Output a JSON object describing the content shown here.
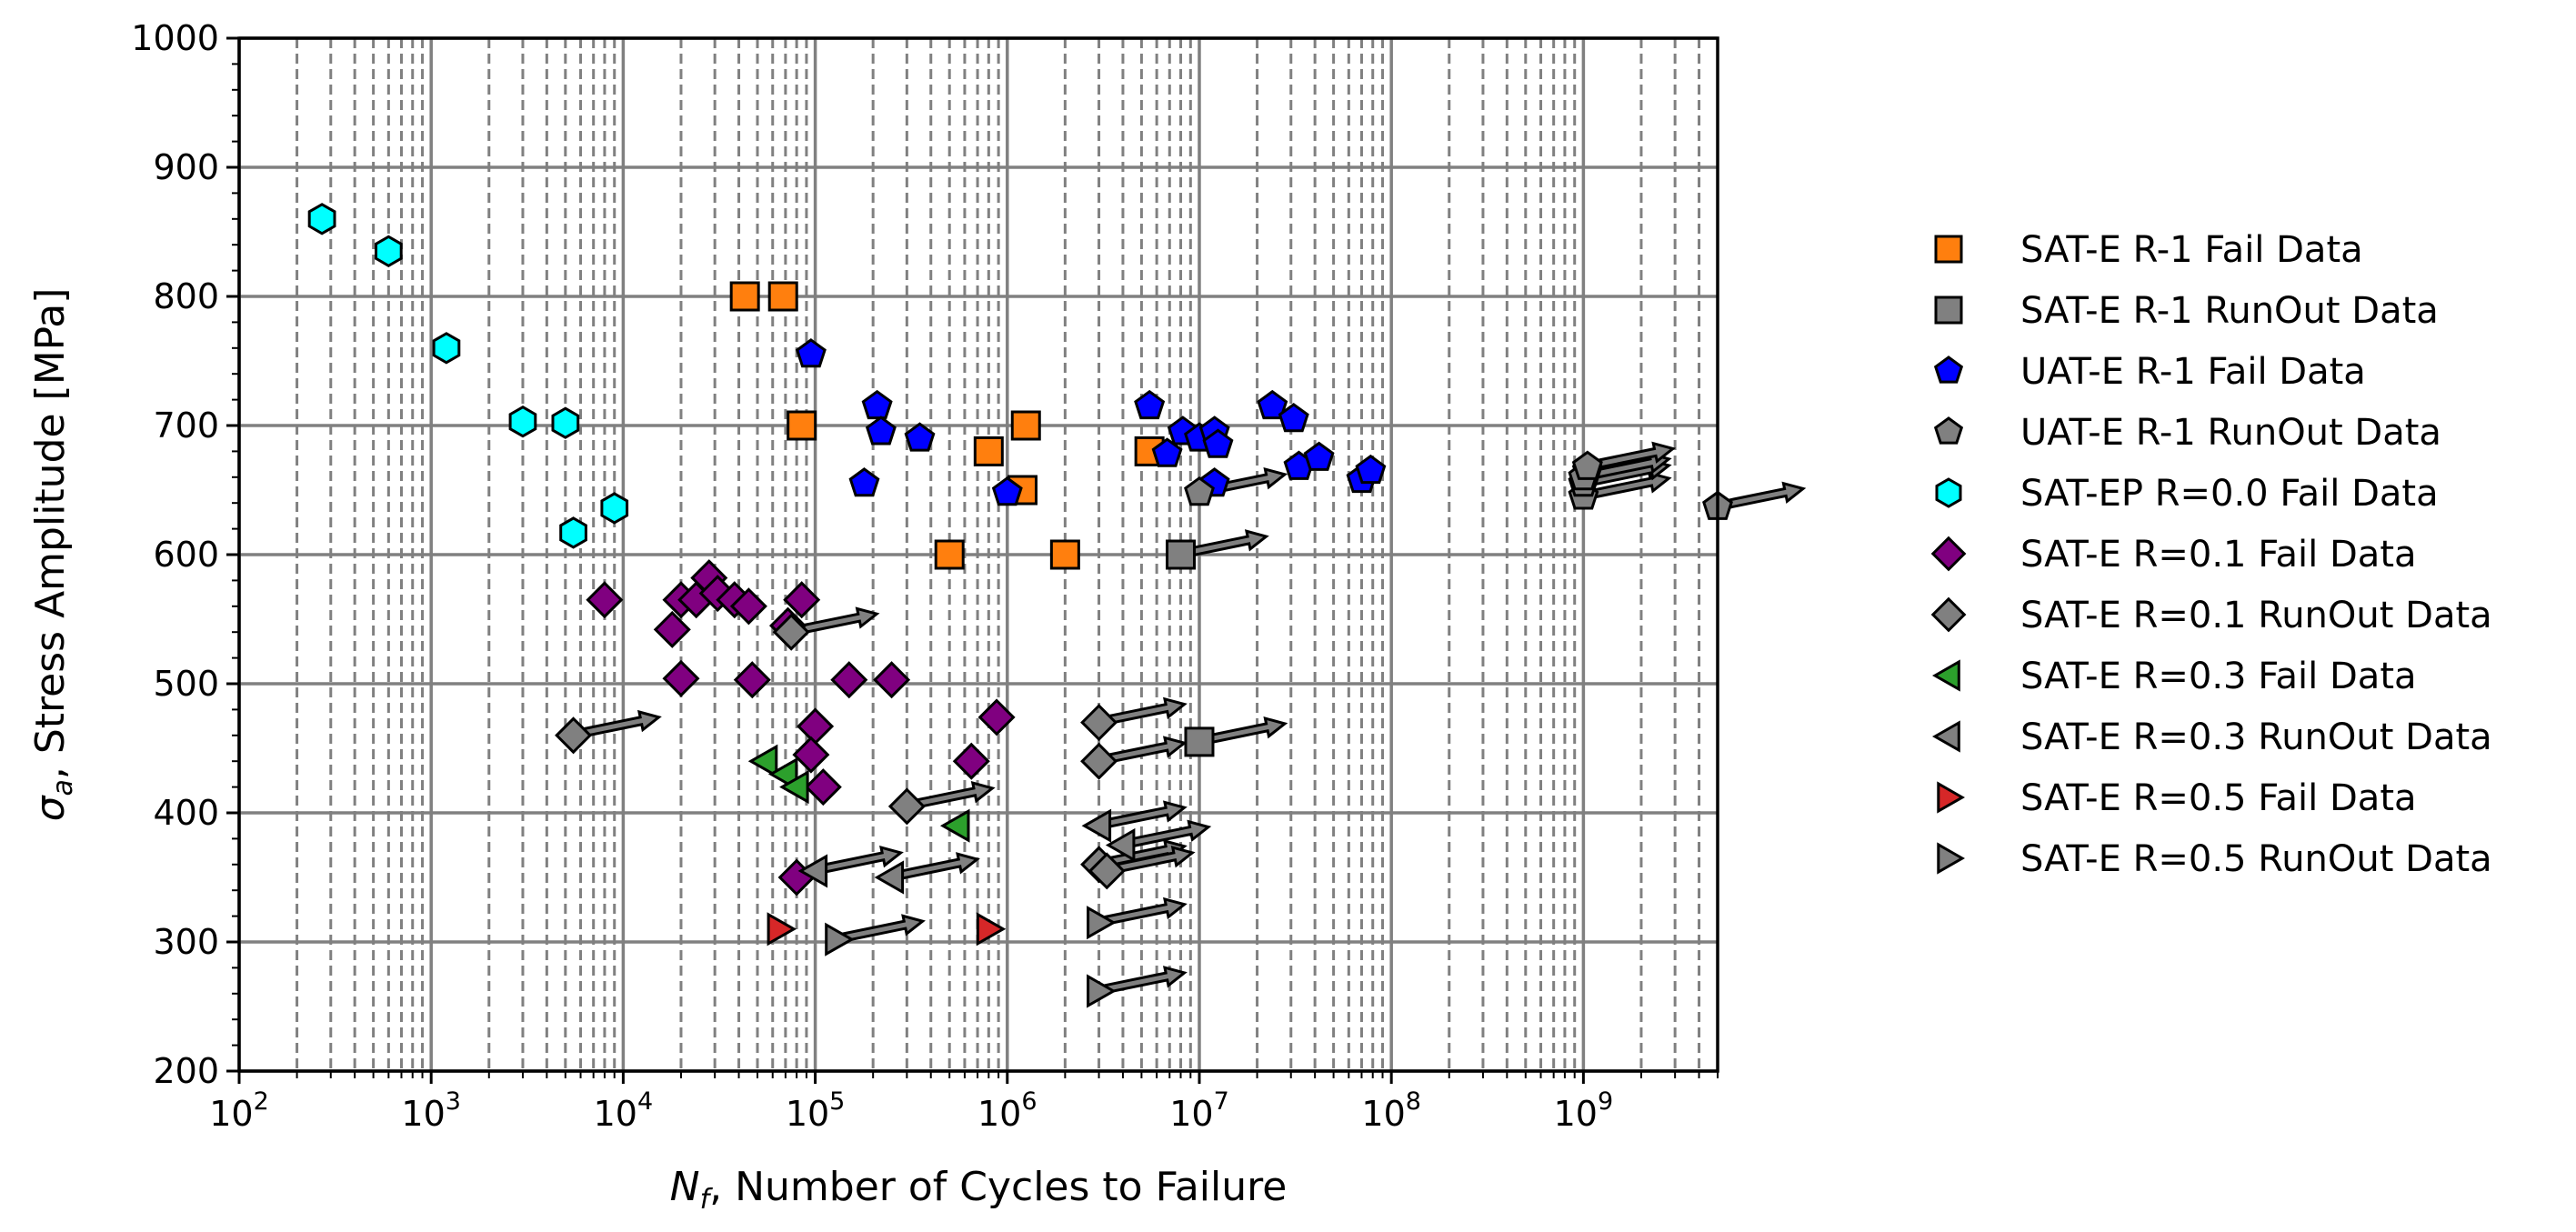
{
  "chart_data": {
    "type": "scatter",
    "title": "",
    "xlabel_sym": "N",
    "xlabel_sub": "f",
    "xlabel_rest": ", Number of Cycles to Failure",
    "ylabel_sym": "σ",
    "ylabel_sub": "a",
    "ylabel_rest": ", Stress Amplitude [MPa]",
    "x_scale": "log",
    "xlim": [
      100,
      5000000000
    ],
    "ylim": [
      200,
      1000
    ],
    "x_ticks": [
      {
        "value": 100,
        "base": "10",
        "exp": "2"
      },
      {
        "value": 1000,
        "base": "10",
        "exp": "3"
      },
      {
        "value": 10000,
        "base": "10",
        "exp": "4"
      },
      {
        "value": 100000,
        "base": "10",
        "exp": "5"
      },
      {
        "value": 1000000,
        "base": "10",
        "exp": "6"
      },
      {
        "value": 10000000,
        "base": "10",
        "exp": "7"
      },
      {
        "value": 100000000,
        "base": "10",
        "exp": "8"
      },
      {
        "value": 1000000000,
        "base": "10",
        "exp": "9"
      }
    ],
    "y_ticks": [
      "200",
      "300",
      "400",
      "500",
      "600",
      "700",
      "800",
      "900",
      "1000"
    ],
    "grid": true,
    "legend_position": "right, outside plot",
    "series": [
      {
        "name": "SAT-E R-1 Fail Data",
        "marker": "square",
        "color": "#ff7f0e",
        "runout": false,
        "points": [
          [
            43000,
            800
          ],
          [
            68000,
            800
          ],
          [
            85000,
            700
          ],
          [
            500000,
            600
          ],
          [
            800000,
            680
          ],
          [
            1200000,
            650
          ],
          [
            1250000,
            700
          ],
          [
            2000000,
            600
          ],
          [
            5500000,
            680
          ]
        ]
      },
      {
        "name": "SAT-E R-1 RunOut Data",
        "marker": "square",
        "color": "#808080",
        "runout": true,
        "points": [
          [
            8000000,
            600
          ],
          [
            10000000,
            455
          ]
        ]
      },
      {
        "name": "UAT-E R-1 Fail Data",
        "marker": "pentagon",
        "color": "#0000ff",
        "runout": false,
        "points": [
          [
            95000,
            755
          ],
          [
            210000,
            715
          ],
          [
            220000,
            695
          ],
          [
            350000,
            690
          ],
          [
            180000,
            655
          ],
          [
            1000000,
            648
          ],
          [
            5500000,
            715
          ],
          [
            6800000,
            678
          ],
          [
            8200000,
            695
          ],
          [
            10000000,
            690
          ],
          [
            12000000,
            655
          ],
          [
            12000000,
            695
          ],
          [
            12500000,
            685
          ],
          [
            24000000,
            715
          ],
          [
            31000000,
            705
          ],
          [
            33000000,
            668
          ],
          [
            42000000,
            675
          ],
          [
            70000000,
            658
          ],
          [
            78000000,
            665
          ],
          [
            1050000000,
            665
          ]
        ]
      },
      {
        "name": "UAT-E R-1 RunOut Data",
        "marker": "pentagon",
        "color": "#808080",
        "runout": true,
        "points": [
          [
            10000000,
            648
          ],
          [
            1000000000,
            645
          ],
          [
            1000000000,
            655
          ],
          [
            1000000000,
            660
          ],
          [
            1050000000,
            668
          ],
          [
            5000000000,
            637
          ]
        ]
      },
      {
        "name": "SAT-EP R=0.0 Fail Data",
        "marker": "hexagon",
        "color": "#00ffff",
        "runout": false,
        "points": [
          [
            270,
            860
          ],
          [
            600,
            835
          ],
          [
            1200,
            760
          ],
          [
            3000,
            703
          ],
          [
            5000,
            702
          ],
          [
            5500,
            617
          ],
          [
            9000,
            636
          ]
        ]
      },
      {
        "name": "SAT-E R=0.1 Fail Data",
        "marker": "diamond",
        "color": "#800080",
        "runout": false,
        "points": [
          [
            8000,
            565
          ],
          [
            18000,
            542
          ],
          [
            20000,
            565
          ],
          [
            24000,
            565
          ],
          [
            28000,
            582
          ],
          [
            31000,
            570
          ],
          [
            38000,
            565
          ],
          [
            45000,
            560
          ],
          [
            72000,
            545
          ],
          [
            85000,
            565
          ],
          [
            20000,
            504
          ],
          [
            47000,
            503
          ],
          [
            150000,
            503
          ],
          [
            250000,
            503
          ],
          [
            100000,
            467
          ],
          [
            95000,
            445
          ],
          [
            110000,
            420
          ],
          [
            80000,
            350
          ],
          [
            650000,
            440
          ],
          [
            880000,
            474
          ]
        ]
      },
      {
        "name": "SAT-E R=0.1 RunOut Data",
        "marker": "diamond",
        "color": "#808080",
        "runout": true,
        "points": [
          [
            75000,
            540
          ],
          [
            5500,
            460
          ],
          [
            300000,
            405
          ],
          [
            3000000,
            470
          ],
          [
            3000000,
            440
          ],
          [
            3000000,
            360
          ],
          [
            3300000,
            355
          ]
        ]
      },
      {
        "name": "SAT-E R=0.3 Fail Data",
        "marker": "triangle-left",
        "color": "#2ca02c",
        "runout": false,
        "points": [
          [
            55000,
            440
          ],
          [
            70000,
            430
          ],
          [
            80000,
            420
          ],
          [
            550000,
            390
          ]
        ]
      },
      {
        "name": "SAT-E R=0.3 RunOut Data",
        "marker": "triangle-left",
        "color": "#808080",
        "runout": true,
        "points": [
          [
            100000,
            355
          ],
          [
            250000,
            350
          ],
          [
            3000000,
            390
          ],
          [
            4000000,
            375
          ]
        ]
      },
      {
        "name": "SAT-E R=0.5 Fail Data",
        "marker": "triangle-right",
        "color": "#d62728",
        "runout": false,
        "points": [
          [
            65000,
            310
          ],
          [
            800000,
            310
          ]
        ]
      },
      {
        "name": "SAT-E R=0.5 RunOut Data",
        "marker": "triangle-right",
        "color": "#808080",
        "runout": true,
        "points": [
          [
            130000,
            302
          ],
          [
            3000000,
            315
          ],
          [
            3000000,
            262
          ]
        ]
      }
    ]
  }
}
